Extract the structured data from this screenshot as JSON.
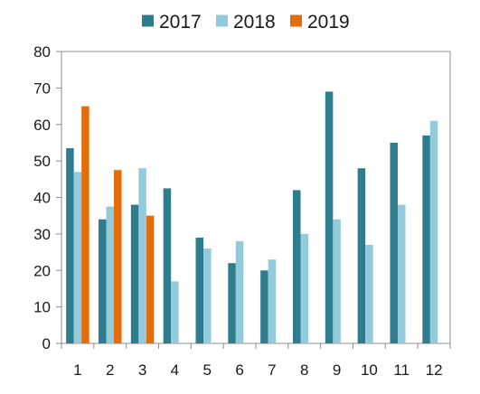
{
  "chart_data": {
    "type": "bar",
    "title": "",
    "xlabel": "",
    "ylabel": "",
    "categories": [
      "1",
      "2",
      "3",
      "4",
      "5",
      "6",
      "7",
      "8",
      "9",
      "10",
      "11",
      "12"
    ],
    "series": [
      {
        "name": "2017",
        "color": "#2e7d8f",
        "values": [
          53.5,
          34,
          38,
          42.5,
          29,
          22,
          20,
          42,
          69,
          48,
          55,
          57
        ]
      },
      {
        "name": "2018",
        "color": "#92cbdc",
        "values": [
          47,
          37.5,
          48,
          17,
          26,
          28,
          23,
          30,
          34,
          27,
          38,
          61
        ]
      },
      {
        "name": "2019",
        "color": "#e46c0a",
        "values": [
          65,
          47.5,
          35,
          null,
          null,
          null,
          null,
          null,
          null,
          null,
          null,
          null
        ]
      }
    ],
    "ylim": [
      0,
      80
    ],
    "yticks": [
      0,
      10,
      20,
      30,
      40,
      50,
      60,
      70,
      80
    ],
    "grid": false,
    "legend_position": "top-center"
  }
}
